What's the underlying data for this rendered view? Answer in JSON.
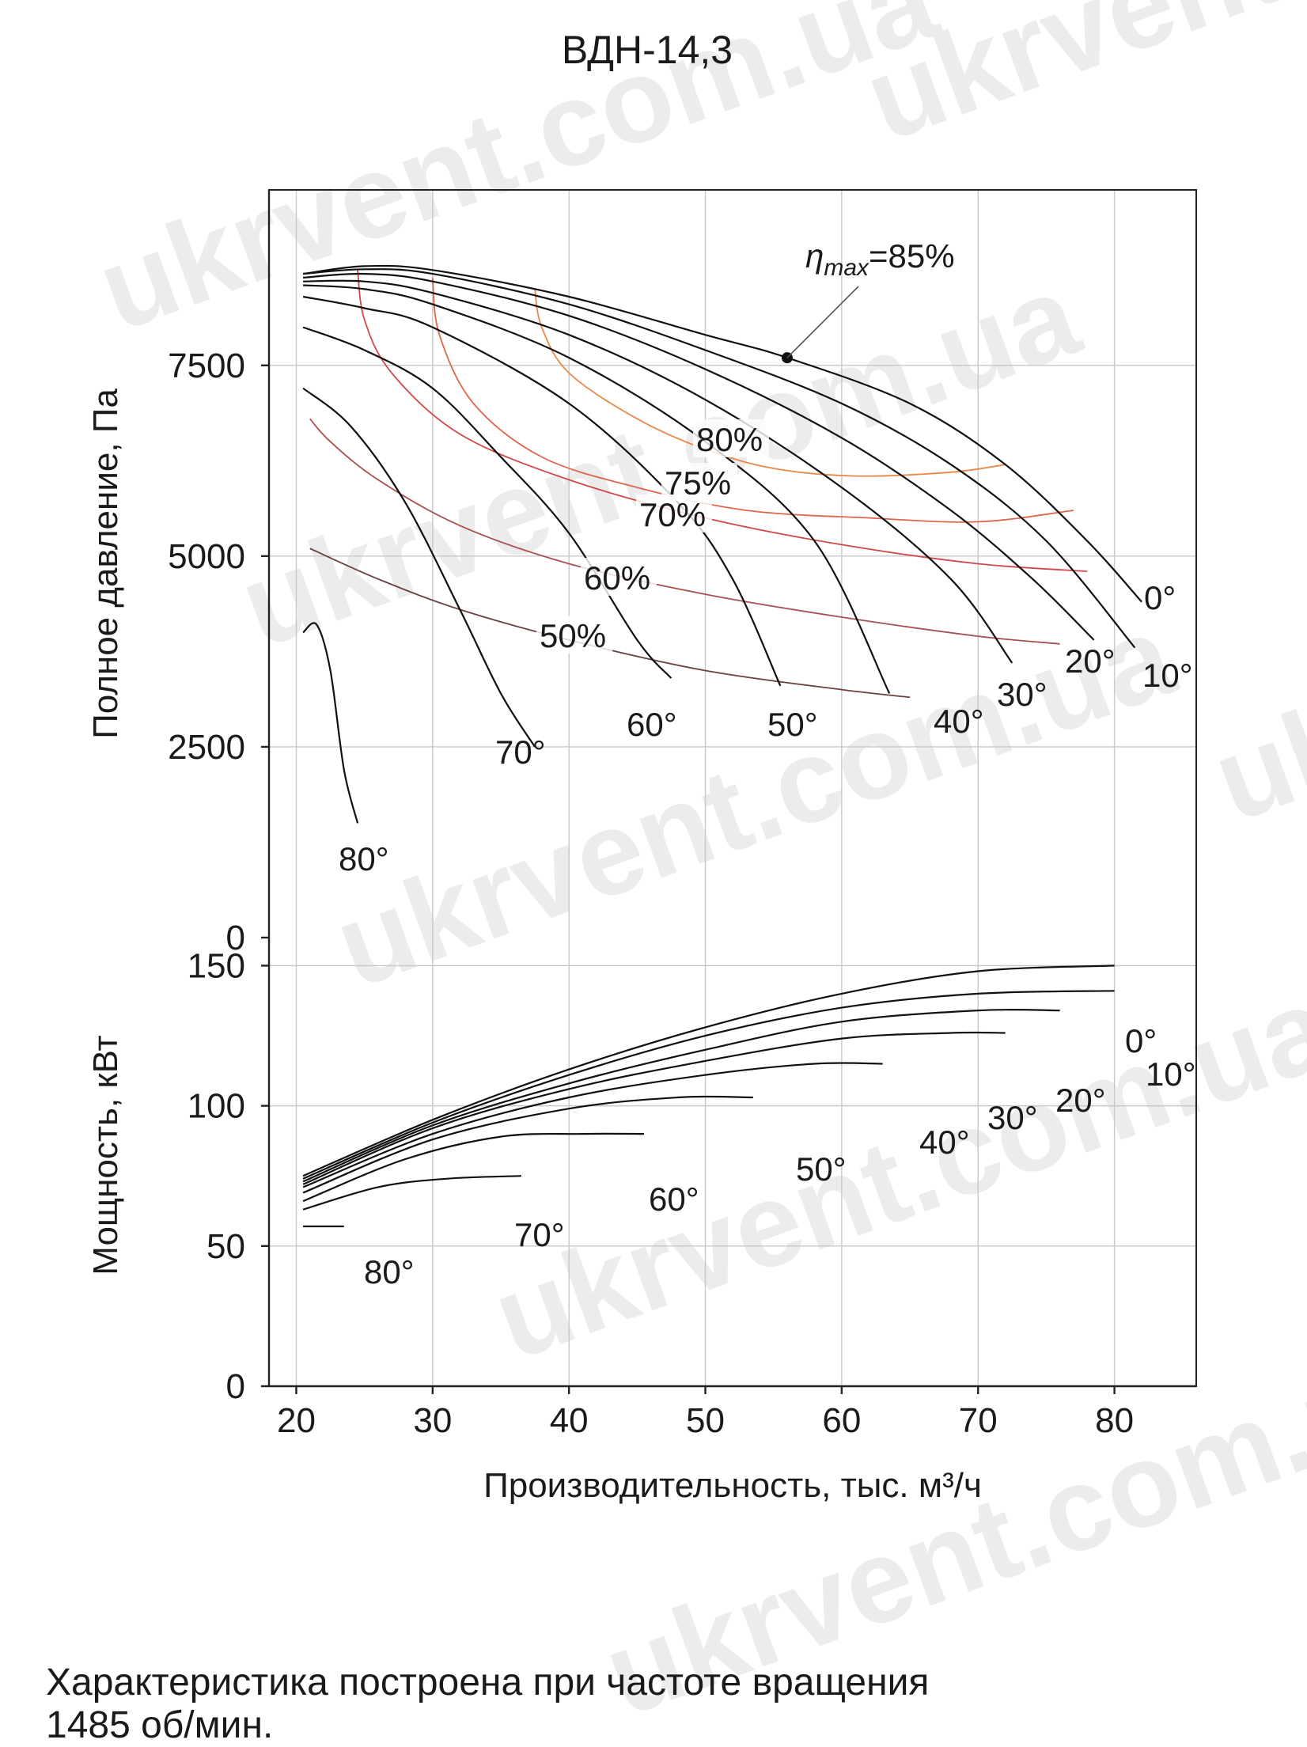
{
  "page": {
    "title": "ВДН-14,3",
    "caption_line1": "Характеристика построена при частоте вращения",
    "caption_line2": "1485 об/мин.",
    "watermark": "ukrvent.com.ua"
  },
  "chart_data": [
    {
      "type": "line",
      "name": "pressure",
      "title": "ВДН-14,3",
      "xlabel": "Производительность, тыс. м³/ч",
      "ylabel": "Полное давление, Па",
      "xlim": [
        18,
        86
      ],
      "ylim": [
        0,
        9800
      ],
      "xticks": [
        20,
        30,
        40,
        50,
        60,
        70,
        80
      ],
      "yticks": [
        0,
        2500,
        5000,
        7500
      ],
      "grid": true,
      "series": [
        {
          "name": "0°",
          "label": "0°",
          "x": [
            20.5,
            25,
            30,
            40,
            50,
            56,
            65,
            72,
            78,
            82
          ],
          "y": [
            8700,
            8800,
            8750,
            8400,
            7900,
            7600,
            7000,
            6200,
            5200,
            4400
          ]
        },
        {
          "name": "10°",
          "label": "10°",
          "x": [
            20.5,
            25,
            30,
            40,
            50,
            60,
            68,
            75,
            81.5
          ],
          "y": [
            8700,
            8760,
            8700,
            8300,
            7700,
            7000,
            6200,
            5200,
            3800
          ]
        },
        {
          "name": "20°",
          "label": "20°",
          "x": [
            20.5,
            25,
            30,
            40,
            50,
            60,
            68,
            74,
            78.5
          ],
          "y": [
            8650,
            8700,
            8600,
            8150,
            7450,
            6550,
            5600,
            4700,
            3900
          ]
        },
        {
          "name": "30°",
          "label": "30°",
          "x": [
            20.5,
            25,
            30,
            40,
            50,
            60,
            68,
            72.5
          ],
          "y": [
            8600,
            8600,
            8450,
            7900,
            7050,
            5900,
            4700,
            3600
          ]
        },
        {
          "name": "40°",
          "label": "40°",
          "x": [
            20.5,
            25,
            30,
            40,
            50,
            58,
            63.5
          ],
          "y": [
            8550,
            8500,
            8300,
            7600,
            6500,
            5200,
            3200
          ]
        },
        {
          "name": "50°",
          "label": "50°",
          "x": [
            20.5,
            25,
            30,
            40,
            48,
            52,
            55.5
          ],
          "y": [
            8400,
            8250,
            8000,
            7000,
            5700,
            4700,
            3300
          ]
        },
        {
          "name": "60°",
          "label": "60°",
          "x": [
            20.5,
            25,
            30,
            35,
            40,
            45,
            47.5
          ],
          "y": [
            8000,
            7700,
            7200,
            6300,
            5300,
            3900,
            3400
          ]
        },
        {
          "name": "70°",
          "label": "70°",
          "x": [
            20.5,
            24,
            28,
            32,
            35,
            37.5
          ],
          "y": [
            7200,
            6700,
            5700,
            4300,
            3200,
            2500
          ]
        },
        {
          "name": "80°",
          "label": "80°",
          "x": [
            20.5,
            21.5,
            22.5,
            23.5,
            24.5
          ],
          "y": [
            4000,
            4100,
            3500,
            2200,
            1500
          ]
        }
      ],
      "efficiency": [
        {
          "name": "80%",
          "label": "80%",
          "color": "#e8894a",
          "x": [
            37.5,
            38,
            40,
            45,
            50,
            55,
            61,
            68,
            72
          ],
          "y": [
            8500,
            8000,
            7400,
            6800,
            6400,
            6150,
            6050,
            6100,
            6200
          ]
        },
        {
          "name": "75%",
          "label": "75%",
          "color": "#e0664a",
          "x": [
            30,
            30.5,
            33,
            38,
            45,
            53,
            62,
            70,
            77
          ],
          "y": [
            8650,
            7900,
            7000,
            6300,
            5900,
            5600,
            5500,
            5450,
            5600
          ]
        },
        {
          "name": "70%",
          "label": "70%",
          "color": "#d04848",
          "x": [
            24.5,
            25,
            27,
            32,
            40,
            50,
            60,
            70,
            78
          ],
          "y": [
            8750,
            8100,
            7400,
            6600,
            6000,
            5500,
            5150,
            4900,
            4800
          ]
        },
        {
          "name": "60%",
          "label": "60%",
          "color": "#a85050",
          "x": [
            21,
            22.5,
            26,
            32,
            40,
            50,
            60,
            70,
            76
          ],
          "y": [
            6800,
            6500,
            6000,
            5400,
            4900,
            4500,
            4200,
            3950,
            3850
          ]
        },
        {
          "name": "50%",
          "label": "50%",
          "color": "#6a4040",
          "x": [
            21,
            26,
            32,
            40,
            50,
            60,
            65
          ],
          "y": [
            5100,
            4700,
            4300,
            3900,
            3500,
            3250,
            3150
          ]
        }
      ],
      "annotations": [
        {
          "text": "η",
          "sub": "max",
          "suffix": "=85%",
          "point_x": 56,
          "point_y": 7600
        }
      ]
    },
    {
      "type": "line",
      "name": "power",
      "ylabel": "Мощность, кВт",
      "xlim": [
        18,
        86
      ],
      "ylim": [
        0,
        160
      ],
      "yticks": [
        0,
        50,
        100,
        150
      ],
      "grid": true,
      "series": [
        {
          "name": "0°",
          "label": "0°",
          "x": [
            20.5,
            30,
            40,
            50,
            60,
            70,
            80
          ],
          "y": [
            75,
            95,
            113,
            128,
            140,
            148,
            150
          ]
        },
        {
          "name": "10°",
          "label": "10°",
          "x": [
            20.5,
            30,
            40,
            50,
            60,
            70,
            80
          ],
          "y": [
            74,
            94,
            111,
            125,
            135,
            140,
            141
          ]
        },
        {
          "name": "20°",
          "label": "20°",
          "x": [
            20.5,
            30,
            40,
            50,
            60,
            70,
            76
          ],
          "y": [
            73,
            93,
            108,
            120,
            130,
            134,
            134
          ]
        },
        {
          "name": "30°",
          "label": "30°",
          "x": [
            20.5,
            30,
            40,
            50,
            60,
            68,
            72
          ],
          "y": [
            72,
            92,
            106,
            116,
            124,
            126,
            126
          ]
        },
        {
          "name": "40°",
          "label": "40°",
          "x": [
            20.5,
            30,
            40,
            50,
            58,
            63
          ],
          "y": [
            71,
            90,
            103,
            111,
            115,
            115
          ]
        },
        {
          "name": "50°",
          "label": "50°",
          "x": [
            20.5,
            30,
            40,
            48,
            53.5
          ],
          "y": [
            69,
            88,
            99,
            103,
            103
          ]
        },
        {
          "name": "60°",
          "label": "60°",
          "x": [
            20.5,
            28,
            35,
            41,
            45.5
          ],
          "y": [
            66,
            81,
            89,
            90,
            90
          ]
        },
        {
          "name": "70°",
          "label": "70°",
          "x": [
            20.5,
            26,
            31,
            36.5
          ],
          "y": [
            63,
            71,
            74,
            75
          ]
        },
        {
          "name": "80°",
          "label": "80°",
          "x": [
            20.5,
            22,
            23.5
          ],
          "y": [
            57,
            57,
            57
          ]
        }
      ]
    }
  ]
}
